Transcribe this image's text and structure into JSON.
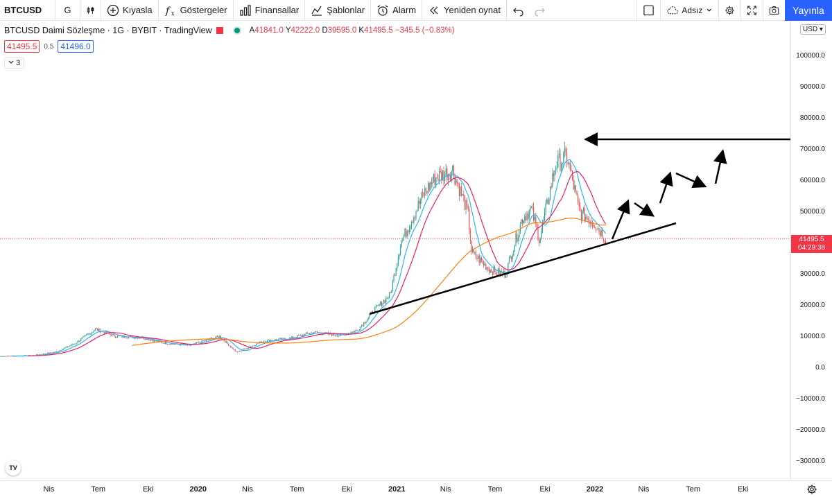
{
  "toolbar": {
    "symbol": "BTCUSD",
    "interval": "G",
    "compare_label": "Kıyasla",
    "indicators_label": "Göstergeler",
    "financials_label": "Finansallar",
    "templates_label": "Şablonlar",
    "alert_label": "Alarm",
    "replay_label": "Yeniden oynat",
    "layout_name": "Adsız",
    "publish_label": "Yayınla"
  },
  "legend": {
    "title": "BTCUSD Daimi Sözleşme · 1G · BYBIT · TradingView",
    "o_label": "A",
    "o_value": "41841.0",
    "h_label": "Y",
    "h_value": "42222.0",
    "l_label": "D",
    "l_value": "39595.0",
    "c_label": "K",
    "c_value": "41495.5",
    "change": "−345.5 (−0.83%)"
  },
  "bidask": {
    "bid": "41495.5",
    "spread": "0.5",
    "ask": "41496.0"
  },
  "collapsed_count": "3",
  "currency": "USD",
  "last_price": {
    "price": "41495.5",
    "countdown": "04:29:38"
  },
  "price_axis": {
    "labels": [
      "100000.0",
      "90000.0",
      "80000.0",
      "70000.0",
      "60000.0",
      "50000.0",
      "40000.0",
      "30000.0",
      "20000.0",
      "10000.0",
      "0.0",
      "−10000.0",
      "−20000.0",
      "−30000.0"
    ]
  },
  "time_axis": {
    "labels": [
      "Nis",
      "Tem",
      "Eki",
      "2020",
      "Nis",
      "Tem",
      "Eki",
      "2021",
      "Nis",
      "Tem",
      "Eki",
      "2022",
      "Nis",
      "Tem",
      "Eki"
    ],
    "bold": [
      false,
      false,
      false,
      true,
      false,
      false,
      false,
      true,
      false,
      false,
      false,
      true,
      false,
      false,
      false
    ]
  },
  "colors": {
    "up": "#26a69a",
    "down": "#ef5350",
    "ma_fast": "#29b6f6",
    "ma_mid": "#e91e63",
    "ma_slow": "#ff7f0e",
    "drawing": "#000000",
    "price_line": "#f23645"
  },
  "chart_data": {
    "type": "candlestick",
    "title": "BTCUSD Daimi Sözleşme · 1G · BYBIT · TradingView",
    "ylim": [
      -35000,
      110000
    ],
    "last": 41495.5,
    "price_path": [
      [
        "2019-01-01",
        3800
      ],
      [
        "2019-03-01",
        4000
      ],
      [
        "2019-04-15",
        5200
      ],
      [
        "2019-05-20",
        8000
      ],
      [
        "2019-06-26",
        12500
      ],
      [
        "2019-08-01",
        10200
      ],
      [
        "2019-09-20",
        9800
      ],
      [
        "2019-10-25",
        8200
      ],
      [
        "2019-12-15",
        7200
      ],
      [
        "2020-02-10",
        10200
      ],
      [
        "2020-03-12",
        5000
      ],
      [
        "2020-04-30",
        8700
      ],
      [
        "2020-06-15",
        9400
      ],
      [
        "2020-08-01",
        11500
      ],
      [
        "2020-09-15",
        10500
      ],
      [
        "2020-10-20",
        12000
      ],
      [
        "2020-11-20",
        18500
      ],
      [
        "2020-12-20",
        23500
      ],
      [
        "2021-01-08",
        40000
      ],
      [
        "2021-02-20",
        56000
      ],
      [
        "2021-03-13",
        61000
      ],
      [
        "2021-04-14",
        63500
      ],
      [
        "2021-05-12",
        50000
      ],
      [
        "2021-05-19",
        37000
      ],
      [
        "2021-06-22",
        31500
      ],
      [
        "2021-07-20",
        30000
      ],
      [
        "2021-08-20",
        48000
      ],
      [
        "2021-09-06",
        51000
      ],
      [
        "2021-09-21",
        41000
      ],
      [
        "2021-10-20",
        65000
      ],
      [
        "2021-11-10",
        68000
      ],
      [
        "2021-12-04",
        50000
      ],
      [
        "2021-12-31",
        46500
      ],
      [
        "2022-01-21",
        41495
      ]
    ],
    "series": [
      {
        "name": "fast"
      },
      {
        "name": "mid"
      },
      {
        "name": "slow"
      }
    ]
  }
}
